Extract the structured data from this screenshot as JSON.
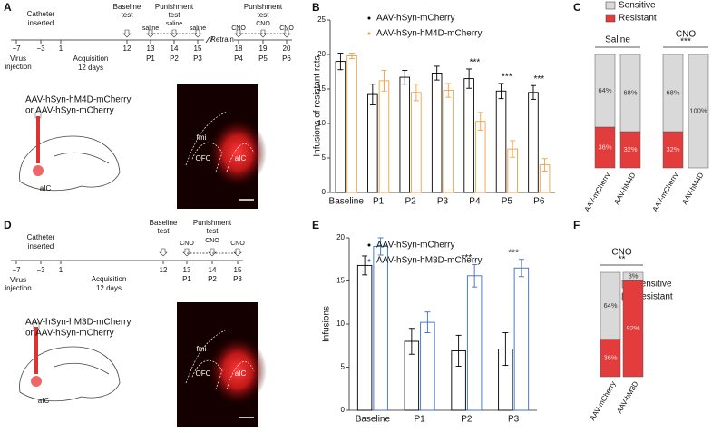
{
  "panel_a": {
    "texts": [
      "A",
      "Catheter",
      "inserted",
      "Baseline",
      "test",
      "Punishment",
      "test",
      "saline",
      "saline",
      "saline",
      "Retrain",
      "CNO",
      "Punishment",
      "test",
      "CNO",
      "CNO",
      "−7",
      "−3",
      "1",
      "12",
      "13",
      "14",
      "15",
      "18",
      "19",
      "20",
      "P1",
      "P2",
      "P3",
      "P4",
      "P5",
      "P6",
      "Virus",
      "injection",
      "Acquisition",
      "12 days",
      "AAV-hSyn-hM4D-mCherry",
      "or AAV-hSyn-mCherry",
      "aIC",
      "fmi",
      "OFC",
      "aIC"
    ]
  },
  "panel_d": {
    "texts": [
      "D",
      "Catheter",
      "inserted",
      "Baseline",
      "test",
      "Punishment",
      "test",
      "CNO",
      "CNO",
      "CNO",
      "−7",
      "−3",
      "1",
      "12",
      "13",
      "14",
      "15",
      "P1",
      "P2",
      "P3",
      "Virus",
      "injection",
      "Acquisition",
      "12 days",
      "AAV-hSyn-hM3D-mCherry",
      "or AAV-hSyn-mCherry",
      "aIC",
      "fmi",
      "OFC",
      "aIC"
    ]
  },
  "chart_data": [
    {
      "type": "bar",
      "label": "B",
      "ylabel": "Infusions of resistant rats",
      "categories": [
        "Baseline",
        "P1",
        "P2",
        "P3",
        "P4",
        "P5",
        "P6"
      ],
      "series": [
        {
          "name": "AAV-hSyn-mCherry",
          "color": "#000000",
          "values": [
            19,
            14.2,
            16.7,
            17.3,
            16.5,
            14.7,
            14.5
          ],
          "errors": [
            1.2,
            1.5,
            1,
            1,
            1.4,
            1.1,
            1
          ]
        },
        {
          "name": "AAV-hSyn-hM4D-mCherry",
          "color": "#f0a040",
          "values": [
            19.8,
            16.2,
            14.5,
            14.8,
            10.3,
            6.3,
            4
          ],
          "errors": [
            0.4,
            1.5,
            1.2,
            1,
            1.3,
            1.2,
            0.9
          ]
        }
      ],
      "ylim": [
        0,
        25
      ],
      "yticks": [
        0,
        5,
        10,
        15,
        20,
        25
      ],
      "annotations": [
        {
          "category": "P4",
          "text": "***"
        },
        {
          "category": "P5",
          "text": "***"
        },
        {
          "category": "P6",
          "text": "***"
        }
      ]
    },
    {
      "type": "stacked",
      "label": "C",
      "groups": [
        {
          "title": "Saline",
          "categories": [
            "AAV-mCherry",
            "AAV-hM4D"
          ]
        },
        {
          "title": "CNO",
          "annotation": "***",
          "categories": [
            "AAV-mCherry",
            "AAV-hM4D"
          ]
        }
      ],
      "series": [
        {
          "name": "Sensitive",
          "color": "#d9d9d9",
          "values": [
            64,
            68,
            68,
            100
          ],
          "value_labels": [
            "64%",
            "68%",
            "68%",
            "100%"
          ]
        },
        {
          "name": "Resistant",
          "color": "#e23c3c",
          "values": [
            36,
            32,
            32,
            0
          ],
          "value_labels": [
            "36%",
            "32%",
            "32%",
            null
          ]
        }
      ]
    },
    {
      "type": "bar",
      "label": "E",
      "ylabel": "Infusions",
      "categories": [
        "Baseline",
        "P1",
        "P2",
        "P3"
      ],
      "series": [
        {
          "name": "AAV-hSyn-mCherry",
          "color": "#000000",
          "values": [
            16.8,
            8,
            6.9,
            7.1
          ],
          "errors": [
            1.1,
            1.5,
            1.8,
            1.9
          ]
        },
        {
          "name": "AAV-hSyn-hM3D-mCherry",
          "color": "#3a6ccc",
          "values": [
            19,
            10.2,
            15.6,
            16.5
          ],
          "errors": [
            1,
            1.2,
            1.3,
            1
          ]
        }
      ],
      "ylim": [
        0,
        20
      ],
      "yticks": [
        0,
        5,
        10,
        15,
        20
      ],
      "annotations": [
        {
          "category": "P2",
          "text": "***"
        },
        {
          "category": "P3",
          "text": "***"
        }
      ]
    },
    {
      "type": "stacked",
      "label": "F",
      "groups": [
        {
          "title": "CNO",
          "annotation": "**",
          "categories": [
            "AAV-mCherry",
            "AAV-hM3D"
          ]
        }
      ],
      "series": [
        {
          "name": "Sensitive",
          "color": "#d9d9d9",
          "values": [
            64,
            8
          ],
          "value_labels": [
            "64%",
            "8%"
          ]
        },
        {
          "name": "Resistant",
          "color": "#e23c3c",
          "values": [
            36,
            92
          ],
          "value_labels": [
            "36%",
            "92%"
          ]
        }
      ]
    }
  ]
}
